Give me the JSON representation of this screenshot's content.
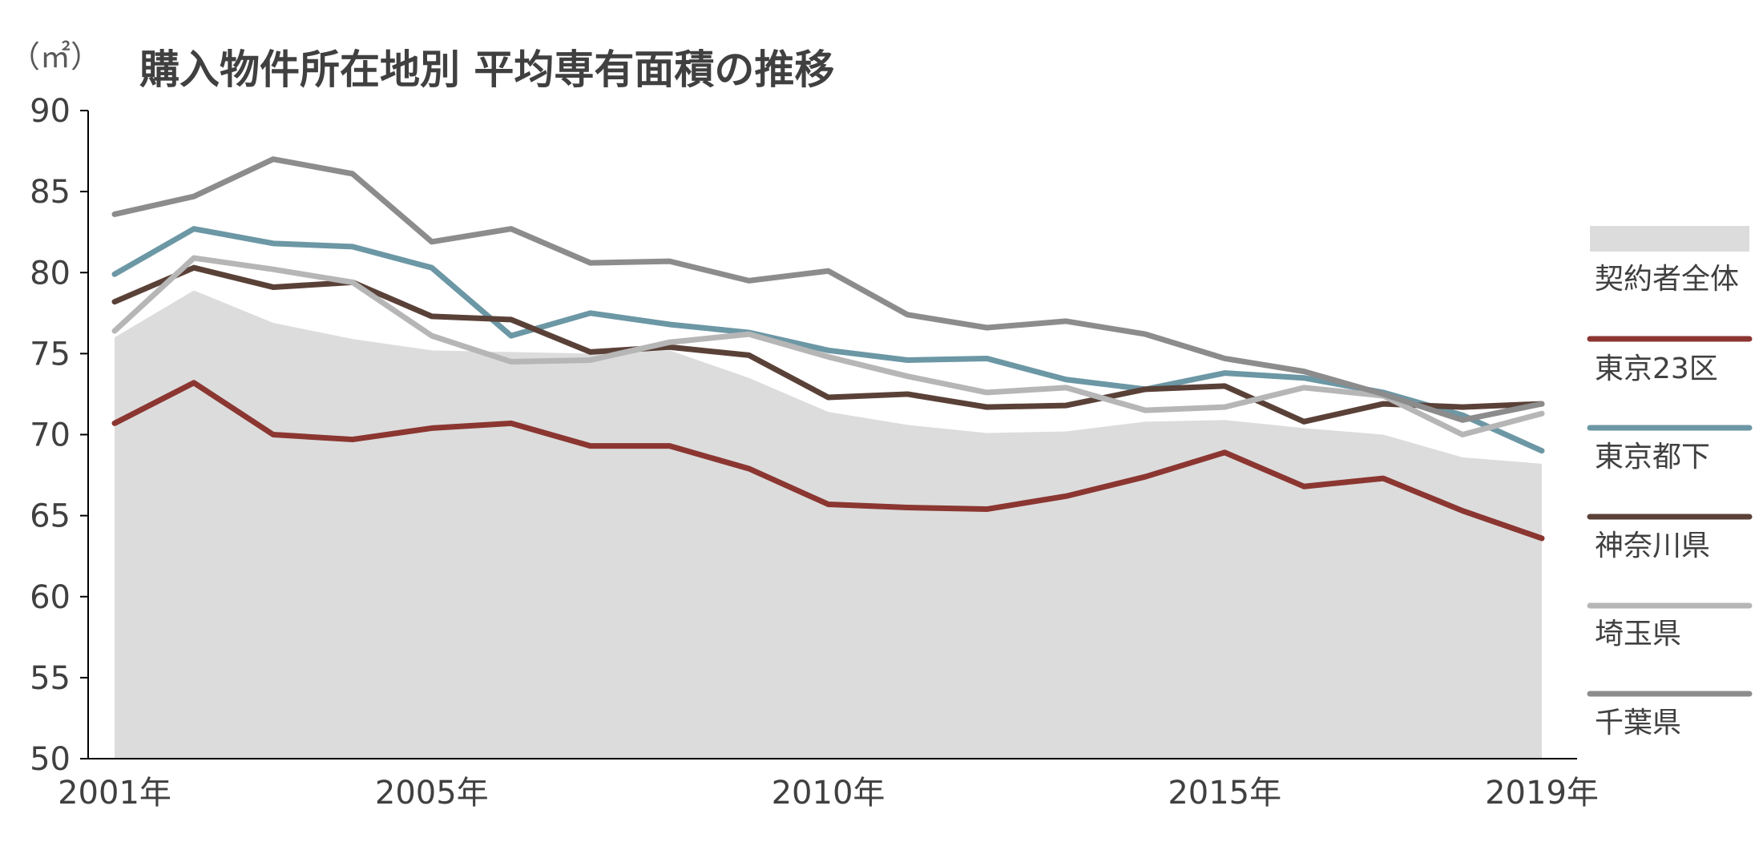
{
  "chart_data": {
    "type": "line",
    "title": "購入物件所在地別 平均専有面積の推移",
    "y_unit": "（㎡）",
    "ylim": [
      50,
      90
    ],
    "yticks": [
      50,
      55,
      60,
      65,
      70,
      75,
      80,
      85,
      90
    ],
    "x": [
      2001,
      2002,
      2003,
      2004,
      2005,
      2006,
      2007,
      2008,
      2009,
      2010,
      2011,
      2012,
      2013,
      2014,
      2015,
      2016,
      2017,
      2018,
      2019
    ],
    "xtick_labels": [
      {
        "x": 2001,
        "label": "2001年"
      },
      {
        "x": 2005,
        "label": "2005年"
      },
      {
        "x": 2010,
        "label": "2010年"
      },
      {
        "x": 2015,
        "label": "2015年"
      },
      {
        "x": 2019,
        "label": "2019年"
      }
    ],
    "grid": false,
    "legend_position": "right",
    "series": [
      {
        "name": "契約者全体",
        "style": "area",
        "color": "#dcdcdc",
        "values": [
          76.0,
          78.9,
          76.9,
          75.9,
          75.2,
          75.1,
          75.0,
          75.2,
          73.5,
          71.4,
          70.6,
          70.1,
          70.2,
          70.8,
          70.9,
          70.4,
          70.0,
          68.6,
          68.2
        ]
      },
      {
        "name": "東京23区",
        "style": "line",
        "color": "#8b3631",
        "values": [
          70.7,
          73.2,
          70.0,
          69.7,
          70.4,
          70.7,
          69.3,
          69.3,
          67.9,
          65.7,
          65.5,
          65.4,
          66.2,
          67.4,
          68.9,
          66.8,
          67.3,
          65.3,
          63.6
        ]
      },
      {
        "name": "東京都下",
        "style": "line",
        "color": "#6c97a5",
        "values": [
          79.9,
          82.7,
          81.8,
          81.6,
          80.3,
          76.1,
          77.5,
          76.8,
          76.3,
          75.2,
          74.6,
          74.7,
          73.4,
          72.8,
          73.8,
          73.5,
          72.6,
          71.2,
          69.0
        ]
      },
      {
        "name": "神奈川県",
        "style": "line",
        "color": "#5a4138",
        "values": [
          78.2,
          80.3,
          79.1,
          79.4,
          77.3,
          77.1,
          75.1,
          75.4,
          74.9,
          72.3,
          72.5,
          71.7,
          71.8,
          72.8,
          73.0,
          70.8,
          71.9,
          71.7,
          71.9
        ]
      },
      {
        "name": "埼玉県",
        "style": "line",
        "color": "#b6b6b6",
        "values": [
          76.4,
          80.9,
          80.2,
          79.4,
          76.1,
          74.5,
          74.6,
          75.7,
          76.2,
          74.8,
          73.6,
          72.6,
          72.9,
          71.5,
          71.7,
          72.9,
          72.4,
          70.0,
          71.3
        ]
      },
      {
        "name": "千葉県",
        "style": "line",
        "color": "#8c8c8c",
        "values": [
          83.6,
          84.7,
          87.0,
          86.1,
          81.9,
          82.7,
          80.6,
          80.7,
          79.5,
          80.1,
          77.4,
          76.6,
          77.0,
          76.2,
          74.7,
          73.9,
          72.5,
          70.9,
          71.9
        ]
      }
    ]
  }
}
